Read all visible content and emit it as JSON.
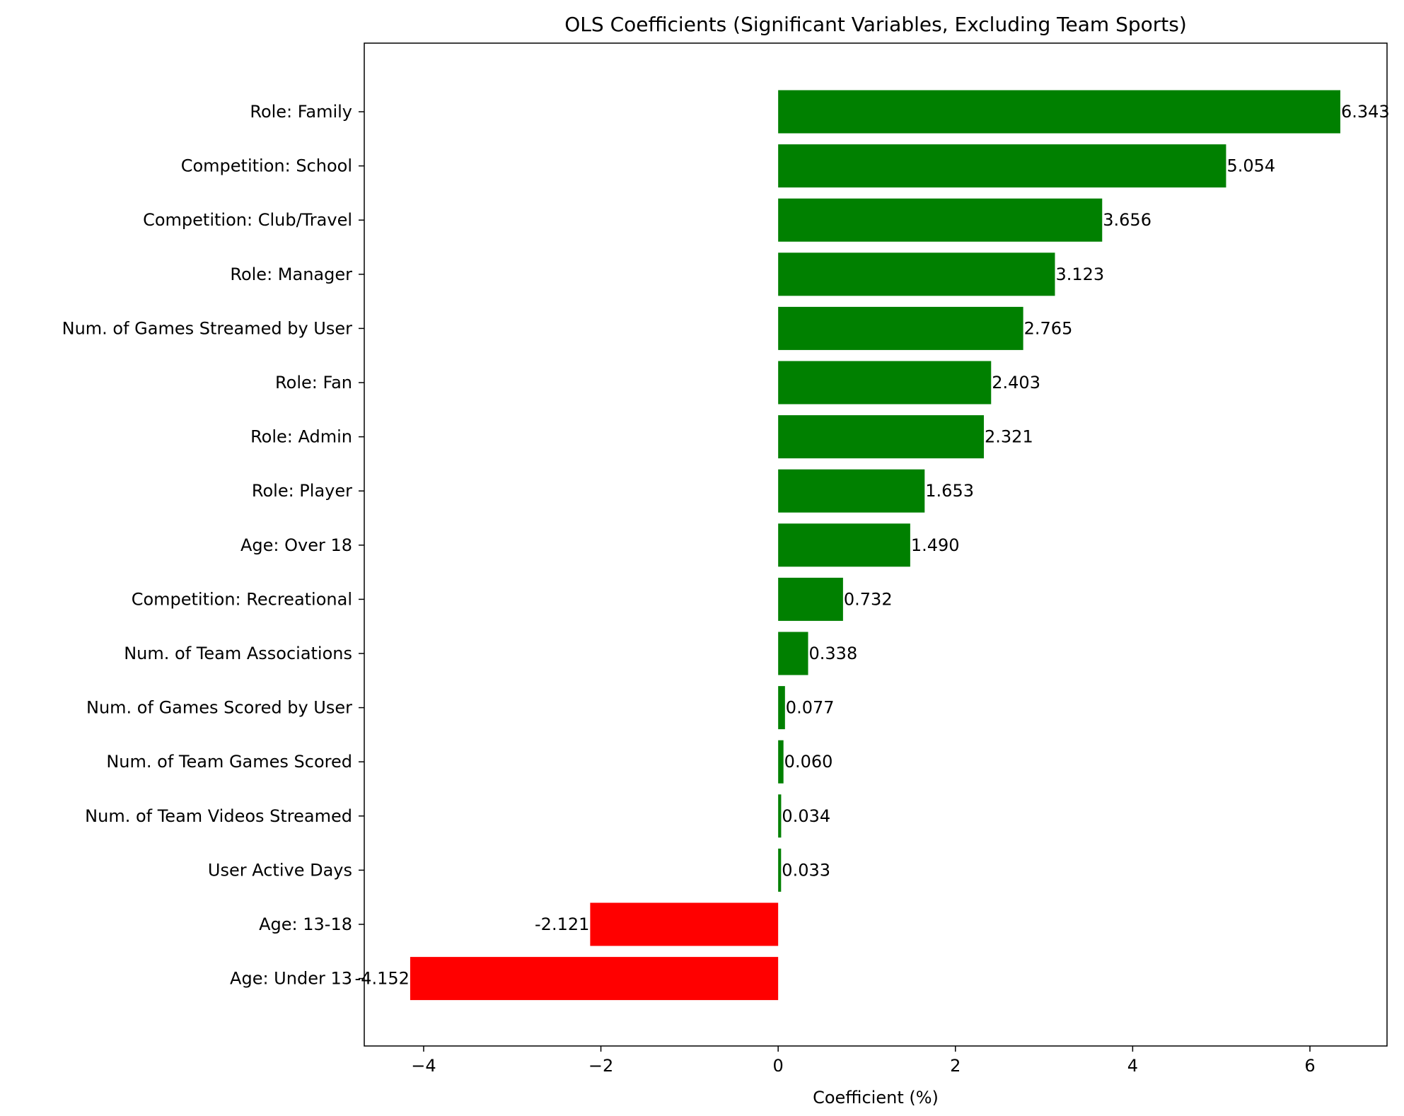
{
  "chart_data": {
    "type": "bar",
    "orientation": "horizontal",
    "title": "OLS Coefficients (Significant Variables, Excluding Team Sports)",
    "xlabel": "Coefficient (%)",
    "ylabel": "",
    "xlim": [
      -4.67,
      6.87
    ],
    "xticks": [
      -4,
      -2,
      0,
      2,
      4,
      6
    ],
    "xtick_labels": [
      "−4",
      "−2",
      "0",
      "2",
      "4",
      "6"
    ],
    "grid": false,
    "legend": "none",
    "colors": {
      "positive": "#008000",
      "negative": "#ff0000"
    },
    "categories": [
      "Role: Family",
      "Competition: School",
      "Competition: Club/Travel",
      "Role: Manager",
      "Num. of Games Streamed by User",
      "Role: Fan",
      "Role: Admin",
      "Role: Player",
      "Age: Over 18",
      "Competition: Recreational",
      "Num. of Team Associations",
      "Num. of Games Scored by User",
      "Num. of Team Games Scored",
      "Num. of Team Videos Streamed",
      "User Active Days",
      "Age: 13-18",
      "Age: Under 13"
    ],
    "values": [
      6.343,
      5.054,
      3.656,
      3.123,
      2.765,
      2.403,
      2.321,
      1.653,
      1.49,
      0.732,
      0.338,
      0.077,
      0.06,
      0.034,
      0.033,
      -2.121,
      -4.152
    ],
    "value_labels": [
      "6.343",
      "5.054",
      "3.656",
      "3.123",
      "2.765",
      "2.403",
      "2.321",
      "1.653",
      "1.490",
      "0.732",
      "0.338",
      "0.077",
      "0.060",
      "0.034",
      "0.033",
      "-2.121",
      "-4.152"
    ]
  }
}
